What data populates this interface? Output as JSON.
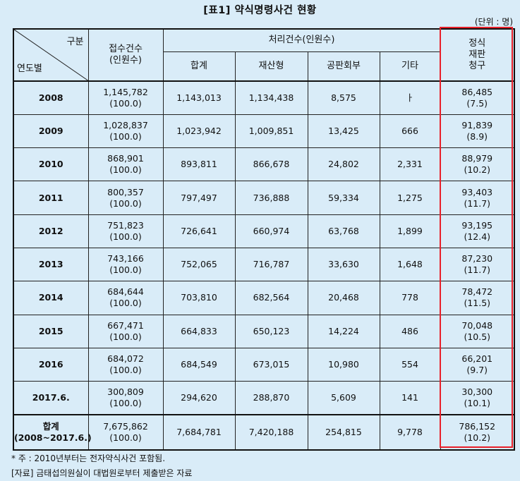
{
  "title": "[표1] 약식명령사건 현황",
  "unit": "(단위 : 명)",
  "header": {
    "corner_top": "구분",
    "corner_bottom": "연도별",
    "received": [
      "접수건수",
      "(인원수)"
    ],
    "processed_group": "처리건수(인원수)",
    "total": "합계",
    "property": "재산형",
    "public_trial": "공판회부",
    "other": "기타",
    "formal_trial": [
      "정식",
      "재판",
      "청구"
    ]
  },
  "rows": [
    {
      "year": "2008",
      "received": "1,145,782",
      "received_pct": "(100.0)",
      "total": "1,143,013",
      "property": "1,134,438",
      "public_trial": "8,575",
      "other": "ㅏ",
      "formal": "86,485",
      "formal_pct": "(7.5)"
    },
    {
      "year": "2009",
      "received": "1,028,837",
      "received_pct": "(100.0)",
      "total": "1,023,942",
      "property": "1,009,851",
      "public_trial": "13,425",
      "other": "666",
      "formal": "91,839",
      "formal_pct": "(8.9)"
    },
    {
      "year": "2010",
      "received": "868,901",
      "received_pct": "(100.0)",
      "total": "893,811",
      "property": "866,678",
      "public_trial": "24,802",
      "other": "2,331",
      "formal": "88,979",
      "formal_pct": "(10.2)"
    },
    {
      "year": "2011",
      "received": "800,357",
      "received_pct": "(100.0)",
      "total": "797,497",
      "property": "736,888",
      "public_trial": "59,334",
      "other": "1,275",
      "formal": "93,403",
      "formal_pct": "(11.7)"
    },
    {
      "year": "2012",
      "received": "751,823",
      "received_pct": "(100.0)",
      "total": "726,641",
      "property": "660,974",
      "public_trial": "63,768",
      "other": "1,899",
      "formal": "93,195",
      "formal_pct": "(12.4)"
    },
    {
      "year": "2013",
      "received": "743,166",
      "received_pct": "(100.0)",
      "total": "752,065",
      "property": "716,787",
      "public_trial": "33,630",
      "other": "1,648",
      "formal": "87,230",
      "formal_pct": "(11.7)"
    },
    {
      "year": "2014",
      "received": "684,644",
      "received_pct": "(100.0)",
      "total": "703,810",
      "property": "682,564",
      "public_trial": "20,468",
      "other": "778",
      "formal": "78,472",
      "formal_pct": "(11.5)"
    },
    {
      "year": "2015",
      "received": "667,471",
      "received_pct": "(100.0)",
      "total": "664,833",
      "property": "650,123",
      "public_trial": "14,224",
      "other": "486",
      "formal": "70,048",
      "formal_pct": "(10.5)"
    },
    {
      "year": "2016",
      "received": "684,072",
      "received_pct": "(100.0)",
      "total": "684,549",
      "property": "673,015",
      "public_trial": "10,980",
      "other": "554",
      "formal": "66,201",
      "formal_pct": "(9.7)"
    },
    {
      "year": "2017.6.",
      "received": "300,809",
      "received_pct": "(100.0)",
      "total": "294,620",
      "property": "288,870",
      "public_trial": "5,609",
      "other": "141",
      "formal": "30,300",
      "formal_pct": "(10.1)"
    }
  ],
  "sum": {
    "label": "합계",
    "label_range": "(2008~2017.6.)",
    "received": "7,675,862",
    "received_pct": "(100.0)",
    "total": "7,684,781",
    "property": "7,420,188",
    "public_trial": "254,815",
    "other": "9,778",
    "formal": "786,152",
    "formal_pct": "(10.2)"
  },
  "notes": {
    "note1": "* 주 : 2010년부터는 전자약식사건 포함됨.",
    "note2": "[자료] 금태섭의원실이 대법원로부터 제출받은 자료"
  },
  "colors": {
    "background": "#d9ecf8",
    "highlight_border": "#e8202a"
  }
}
